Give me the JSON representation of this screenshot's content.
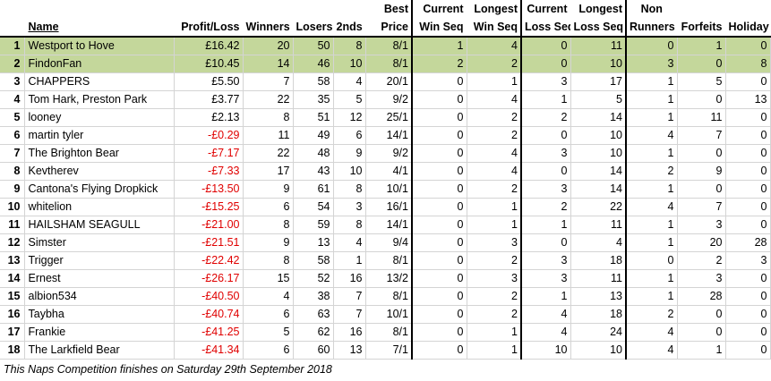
{
  "headers": {
    "row1": {
      "best": "Best",
      "cur_win": "Current",
      "long_win": "Longest",
      "cur_loss": "Current",
      "long_loss": "Longest",
      "non": "Non"
    },
    "row2": {
      "name": "Name",
      "pl": "Profit/Loss",
      "winners": "Winners",
      "losers": "Losers",
      "seconds": "2nds",
      "best": "Price",
      "cur_win": "Win Seq",
      "long_win": "Win Seq",
      "cur_loss": "Loss Seq",
      "long_loss": "Loss Seq",
      "non": "Runners",
      "forfeits": "Forfeits",
      "holiday": "Holiday"
    }
  },
  "rows": [
    {
      "pos": "1",
      "name": "Westport to Hove",
      "pl": "£16.42",
      "w": "20",
      "l": "50",
      "s": "8",
      "bp": "8/1",
      "cw": "1",
      "lw": "4",
      "cl": "0",
      "ll": "11",
      "nr": "0",
      "f": "1",
      "h": "0",
      "neg": false,
      "hl": true
    },
    {
      "pos": "2",
      "name": "FindonFan",
      "pl": "£10.45",
      "w": "14",
      "l": "46",
      "s": "10",
      "bp": "8/1",
      "cw": "2",
      "lw": "2",
      "cl": "0",
      "ll": "10",
      "nr": "3",
      "f": "0",
      "h": "8",
      "neg": false,
      "hl": true
    },
    {
      "pos": "3",
      "name": "CHAPPERS",
      "pl": "£5.50",
      "w": "7",
      "l": "58",
      "s": "4",
      "bp": "20/1",
      "cw": "0",
      "lw": "1",
      "cl": "3",
      "ll": "17",
      "nr": "1",
      "f": "5",
      "h": "0",
      "neg": false,
      "hl": false
    },
    {
      "pos": "4",
      "name": "Tom Hark, Preston Park",
      "pl": "£3.77",
      "w": "22",
      "l": "35",
      "s": "5",
      "bp": "9/2",
      "cw": "0",
      "lw": "4",
      "cl": "1",
      "ll": "5",
      "nr": "1",
      "f": "0",
      "h": "13",
      "neg": false,
      "hl": false
    },
    {
      "pos": "5",
      "name": "looney",
      "pl": "£2.13",
      "w": "8",
      "l": "51",
      "s": "12",
      "bp": "25/1",
      "cw": "0",
      "lw": "2",
      "cl": "2",
      "ll": "14",
      "nr": "1",
      "f": "11",
      "h": "0",
      "neg": false,
      "hl": false
    },
    {
      "pos": "6",
      "name": "martin tyler",
      "pl": "-£0.29",
      "w": "11",
      "l": "49",
      "s": "6",
      "bp": "14/1",
      "cw": "0",
      "lw": "2",
      "cl": "0",
      "ll": "10",
      "nr": "4",
      "f": "7",
      "h": "0",
      "neg": true,
      "hl": false
    },
    {
      "pos": "7",
      "name": "The Brighton Bear",
      "pl": "-£7.17",
      "w": "22",
      "l": "48",
      "s": "9",
      "bp": "9/2",
      "cw": "0",
      "lw": "4",
      "cl": "3",
      "ll": "10",
      "nr": "1",
      "f": "0",
      "h": "0",
      "neg": true,
      "hl": false
    },
    {
      "pos": "8",
      "name": "Kevtherev",
      "pl": "-£7.33",
      "w": "17",
      "l": "43",
      "s": "10",
      "bp": "4/1",
      "cw": "0",
      "lw": "4",
      "cl": "0",
      "ll": "14",
      "nr": "2",
      "f": "9",
      "h": "0",
      "neg": true,
      "hl": false
    },
    {
      "pos": "9",
      "name": "Cantona's Flying Dropkick",
      "pl": "-£13.50",
      "w": "9",
      "l": "61",
      "s": "8",
      "bp": "10/1",
      "cw": "0",
      "lw": "2",
      "cl": "3",
      "ll": "14",
      "nr": "1",
      "f": "0",
      "h": "0",
      "neg": true,
      "hl": false
    },
    {
      "pos": "10",
      "name": "whitelion",
      "pl": "-£15.25",
      "w": "6",
      "l": "54",
      "s": "3",
      "bp": "16/1",
      "cw": "0",
      "lw": "1",
      "cl": "2",
      "ll": "22",
      "nr": "4",
      "f": "7",
      "h": "0",
      "neg": true,
      "hl": false
    },
    {
      "pos": "11",
      "name": "HAILSHAM SEAGULL",
      "pl": "-£21.00",
      "w": "8",
      "l": "59",
      "s": "8",
      "bp": "14/1",
      "cw": "0",
      "lw": "1",
      "cl": "1",
      "ll": "11",
      "nr": "1",
      "f": "3",
      "h": "0",
      "neg": true,
      "hl": false
    },
    {
      "pos": "12",
      "name": "Simster",
      "pl": "-£21.51",
      "w": "9",
      "l": "13",
      "s": "4",
      "bp": "9/4",
      "cw": "0",
      "lw": "3",
      "cl": "0",
      "ll": "4",
      "nr": "1",
      "f": "20",
      "h": "28",
      "neg": true,
      "hl": false
    },
    {
      "pos": "13",
      "name": "Trigger",
      "pl": "-£22.42",
      "w": "8",
      "l": "58",
      "s": "1",
      "bp": "8/1",
      "cw": "0",
      "lw": "2",
      "cl": "3",
      "ll": "18",
      "nr": "0",
      "f": "2",
      "h": "3",
      "neg": true,
      "hl": false
    },
    {
      "pos": "14",
      "name": "Ernest",
      "pl": "-£26.17",
      "w": "15",
      "l": "52",
      "s": "16",
      "bp": "13/2",
      "cw": "0",
      "lw": "3",
      "cl": "3",
      "ll": "11",
      "nr": "1",
      "f": "3",
      "h": "0",
      "neg": true,
      "hl": false
    },
    {
      "pos": "15",
      "name": "albion534",
      "pl": "-£40.50",
      "w": "4",
      "l": "38",
      "s": "7",
      "bp": "8/1",
      "cw": "0",
      "lw": "2",
      "cl": "1",
      "ll": "13",
      "nr": "1",
      "f": "28",
      "h": "0",
      "neg": true,
      "hl": false
    },
    {
      "pos": "16",
      "name": "Taybha",
      "pl": "-£40.74",
      "w": "6",
      "l": "63",
      "s": "7",
      "bp": "10/1",
      "cw": "0",
      "lw": "2",
      "cl": "4",
      "ll": "18",
      "nr": "2",
      "f": "0",
      "h": "0",
      "neg": true,
      "hl": false
    },
    {
      "pos": "17",
      "name": "Frankie",
      "pl": "-£41.25",
      "w": "5",
      "l": "62",
      "s": "16",
      "bp": "8/1",
      "cw": "0",
      "lw": "1",
      "cl": "4",
      "ll": "24",
      "nr": "4",
      "f": "0",
      "h": "0",
      "neg": true,
      "hl": false
    },
    {
      "pos": "18",
      "name": "The Larkfield Bear",
      "pl": "-£41.34",
      "w": "6",
      "l": "60",
      "s": "13",
      "bp": "7/1",
      "cw": "0",
      "lw": "1",
      "cl": "10",
      "ll": "10",
      "nr": "4",
      "f": "1",
      "h": "0",
      "neg": true,
      "hl": false
    }
  ],
  "footer": "This Naps Competition finishes on Saturday 29th September 2018"
}
